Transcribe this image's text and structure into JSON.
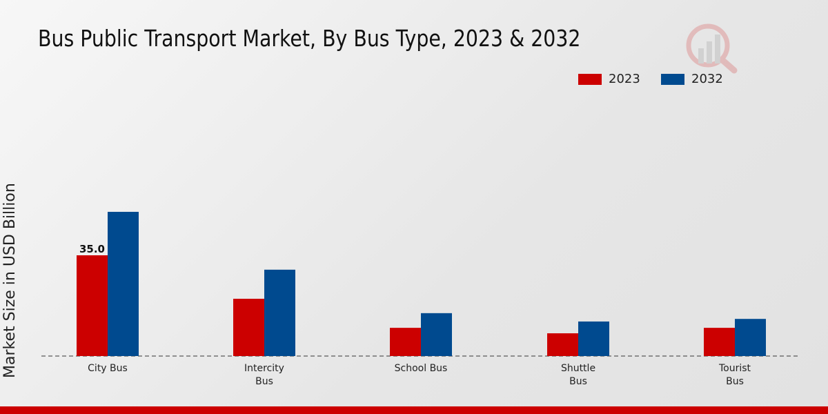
{
  "chart_data": {
    "type": "bar",
    "title": "Bus Public Transport Market, By Bus Type, 2023 & 2032",
    "xlabel": "",
    "ylabel": "Market Size in USD Billion",
    "categories": [
      [
        "City Bus"
      ],
      [
        "Intercity",
        "Bus"
      ],
      [
        "School Bus"
      ],
      [
        "Shuttle",
        "Bus"
      ],
      [
        "Tourist",
        "Bus"
      ]
    ],
    "series": [
      {
        "name": "2023",
        "color": "#cc0000",
        "values": [
          35.0,
          19.9,
          9.8,
          7.9,
          9.8
        ]
      },
      {
        "name": "2032",
        "color": "#004a8f",
        "values": [
          50.1,
          30.0,
          14.9,
          12.0,
          12.9
        ]
      }
    ],
    "data_labels": [
      {
        "series": 0,
        "index": 0,
        "text": "35.0"
      }
    ],
    "ylim": [
      0,
      60
    ],
    "grid": false,
    "legend_position": "top-right"
  }
}
